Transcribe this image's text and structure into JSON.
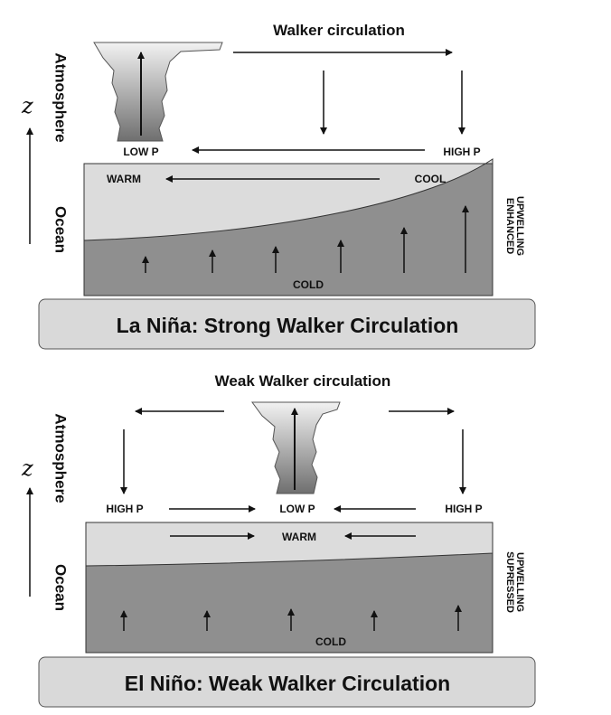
{
  "la_nina": {
    "z_label": "z",
    "atmosphere_label": "Atmosphere",
    "ocean_label": "Ocean",
    "circulation_title": "Walker circulation",
    "low_p": "LOW P",
    "high_p": "HIGH P",
    "warm": "WARM",
    "cool": "COOL",
    "cold": "COLD",
    "upwelling_line1": "ENHANCED",
    "upwelling_line2": "UPWELLING",
    "banner": "La Niña:  Strong Walker Circulation"
  },
  "el_nino": {
    "z_label": "z",
    "atmosphere_label": "Atmosphere",
    "ocean_label": "Ocean",
    "circulation_title": "Weak Walker circulation",
    "high_p_left": "HIGH P",
    "low_p": "LOW P",
    "high_p_right": "HIGH P",
    "warm": "WARM",
    "cold": "COLD",
    "upwelling_line1": "SUPRESSED",
    "upwelling_line2": "UPWELLING",
    "banner": "El Niño: Weak Walker Circulation"
  },
  "colors": {
    "warm_layer": "#dcdcdc",
    "cold_layer": "#8f8f8f",
    "banner_fill": "#d9d9d9",
    "arrow": "#111111"
  }
}
